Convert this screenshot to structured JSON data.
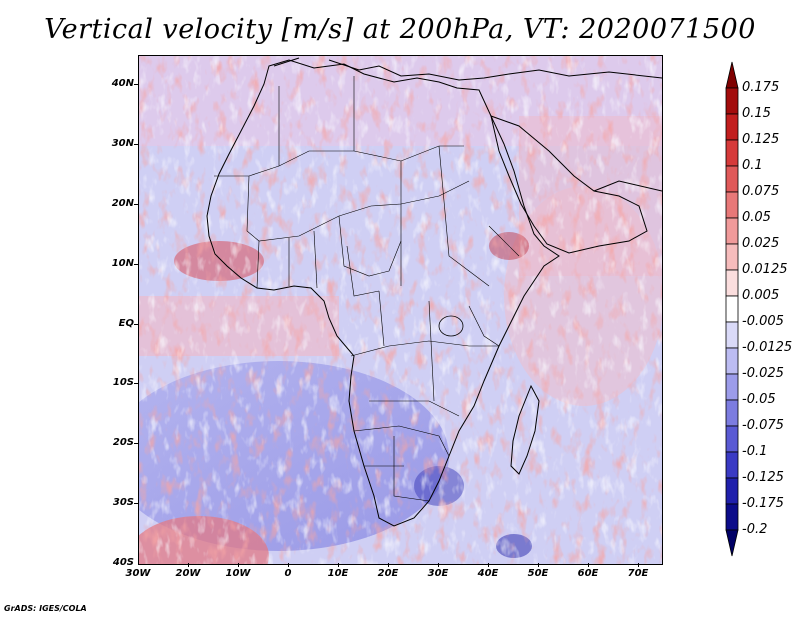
{
  "title": "Vertical velocity [m/s] at 200hPa, VT: 2020071500",
  "credit": "GrADS: IGES/COLA",
  "map": {
    "variable": "Vertical velocity",
    "units": "m/s",
    "level": "200hPa",
    "valid_time": "2020071500",
    "projection": "lat-lon",
    "lon_range": [
      -30,
      75
    ],
    "lat_range": [
      -40,
      45
    ],
    "y_ticks": [
      "40N",
      "30N",
      "20N",
      "10N",
      "EQ",
      "10S",
      "20S",
      "30S",
      "40S"
    ],
    "x_ticks": [
      "30W",
      "20W",
      "10W",
      "0",
      "10E",
      "20E",
      "30E",
      "40E",
      "50E",
      "60E",
      "70E"
    ],
    "regions": [
      {
        "name": "north-africa-sahara",
        "tone": "mixed"
      },
      {
        "name": "west-africa-coast",
        "tone": "positive"
      },
      {
        "name": "south-atlantic-gyre",
        "tone": "negative"
      },
      {
        "name": "southern-africa-highveld",
        "tone": "strong-negative"
      },
      {
        "name": "horn-of-africa",
        "tone": "strong-positive"
      }
    ]
  },
  "colorbar": {
    "labels": [
      "0.175",
      "0.15",
      "0.125",
      "0.1",
      "0.075",
      "0.05",
      "0.025",
      "0.0125",
      "0.005",
      "-0.005",
      "-0.0125",
      "-0.025",
      "-0.05",
      "-0.075",
      "-0.1",
      "-0.125",
      "-0.175",
      "-0.2"
    ],
    "colors": [
      "#7f0000",
      "#a30c0c",
      "#c21e1e",
      "#d63a3a",
      "#e05959",
      "#e87878",
      "#f09a9a",
      "#f6bcbc",
      "#fbdede",
      "#ffffff",
      "#dadaf8",
      "#bcbcf2",
      "#9c9cea",
      "#7c7ce0",
      "#5a5ad4",
      "#3a3ac4",
      "#2020ac",
      "#0c0c8a",
      "#000066"
    ]
  }
}
